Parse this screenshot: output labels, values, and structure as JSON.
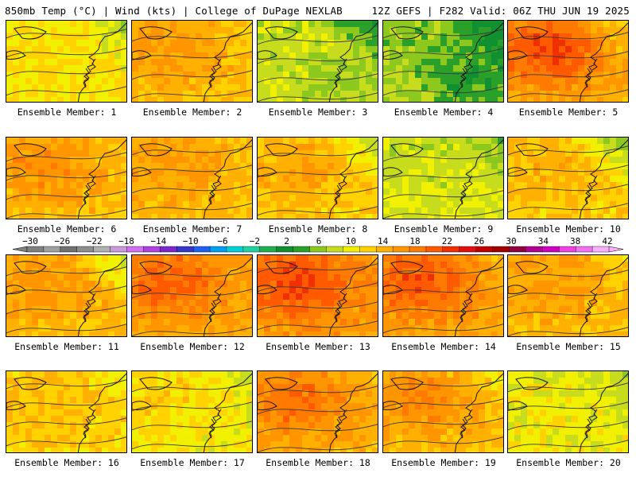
{
  "header": {
    "left_text": "850mb Temp (°C) | Wind (kts) | College of DuPage NEXLAB",
    "right_text": "12Z GEFS | F282 Valid: 06Z THU JUN 19 2025"
  },
  "colorbar": {
    "tick_labels": [
      "−30",
      "−26",
      "−22",
      "−18",
      "−14",
      "−10",
      "−6",
      "−2",
      "2",
      "6",
      "10",
      "14",
      "18",
      "22",
      "26",
      "30",
      "34",
      "38",
      "42"
    ],
    "colors": [
      "#808080",
      "#a0a0a0",
      "#707070",
      "#8c8c8c",
      "#b0b0b0",
      "#c89bd8",
      "#d070f0",
      "#b040e0",
      "#7a28c8",
      "#3838c8",
      "#2060f0",
      "#00a0f0",
      "#00d0d8",
      "#20d0a0",
      "#20b050",
      "#109030",
      "#2aa02a",
      "#8cc81e",
      "#c8dc1e",
      "#f0f000",
      "#ffd200",
      "#ffb000",
      "#ff9600",
      "#ff7a00",
      "#ff5a00",
      "#f03000",
      "#e01010",
      "#c00000",
      "#a00000",
      "#900040",
      "#b00090",
      "#d000c0",
      "#f040e0",
      "#f070f0",
      "#f8b0f8"
    ]
  },
  "panels": [
    {
      "label": "Ensemble Member: 1",
      "base": 16,
      "warm": 0,
      "cool": 0,
      "ne": -4,
      "temp_shift": 0
    },
    {
      "label": "Ensemble Member: 2",
      "base": 18,
      "warm": 2,
      "cool": 0,
      "ne": -3,
      "temp_shift": 1
    },
    {
      "label": "Ensemble Member: 3",
      "base": 14,
      "warm": 0,
      "cool": 2,
      "ne": -6,
      "temp_shift": -1
    },
    {
      "label": "Ensemble Member: 4",
      "base": 13,
      "warm": 0,
      "cool": 4,
      "ne": -7,
      "temp_shift": -2
    },
    {
      "label": "Ensemble Member: 5",
      "base": 19,
      "warm": 6,
      "cool": 0,
      "ne": -5,
      "temp_shift": 2
    },
    {
      "label": "Ensemble Member: 6",
      "base": 18,
      "warm": 3,
      "cool": 0,
      "ne": -2,
      "temp_shift": 1
    },
    {
      "label": "Ensemble Member: 7",
      "base": 18,
      "warm": 2,
      "cool": 0,
      "ne": -2,
      "temp_shift": 1
    },
    {
      "label": "Ensemble Member: 8",
      "base": 17,
      "warm": 3,
      "cool": 0,
      "ne": -6,
      "temp_shift": 0
    },
    {
      "label": "Ensemble Member: 9",
      "base": 14,
      "warm": 0,
      "cool": 0,
      "ne": -3,
      "temp_shift": -1
    },
    {
      "label": "Ensemble Member: 10",
      "base": 17,
      "warm": 2,
      "cool": 0,
      "ne": -8,
      "temp_shift": 0
    },
    {
      "label": "Ensemble Member: 11",
      "base": 18,
      "warm": 2,
      "cool": 0,
      "ne": -7,
      "temp_shift": 1
    },
    {
      "label": "Ensemble Member: 12",
      "base": 19,
      "warm": 4,
      "cool": 0,
      "ne": -2,
      "temp_shift": 2
    },
    {
      "label": "Ensemble Member: 13",
      "base": 20,
      "warm": 5,
      "cool": 0,
      "ne": -2,
      "temp_shift": 2
    },
    {
      "label": "Ensemble Member: 14",
      "base": 19,
      "warm": 5,
      "cool": 0,
      "ne": -3,
      "temp_shift": 2
    },
    {
      "label": "Ensemble Member: 15",
      "base": 18,
      "warm": 2,
      "cool": 0,
      "ne": -3,
      "temp_shift": 1
    },
    {
      "label": "Ensemble Member: 16",
      "base": 17,
      "warm": 1,
      "cool": 0,
      "ne": -2,
      "temp_shift": 0
    },
    {
      "label": "Ensemble Member: 17",
      "base": 16,
      "warm": 1,
      "cool": 1,
      "ne": -3,
      "temp_shift": 0
    },
    {
      "label": "Ensemble Member: 18",
      "base": 19,
      "warm": 4,
      "cool": 0,
      "ne": -3,
      "temp_shift": 1
    },
    {
      "label": "Ensemble Member: 19",
      "base": 18,
      "warm": 3,
      "cool": 0,
      "ne": -5,
      "temp_shift": 1
    },
    {
      "label": "Ensemble Member: 20",
      "base": 15,
      "warm": 1,
      "cool": 0,
      "ne": -2,
      "temp_shift": -1
    }
  ]
}
